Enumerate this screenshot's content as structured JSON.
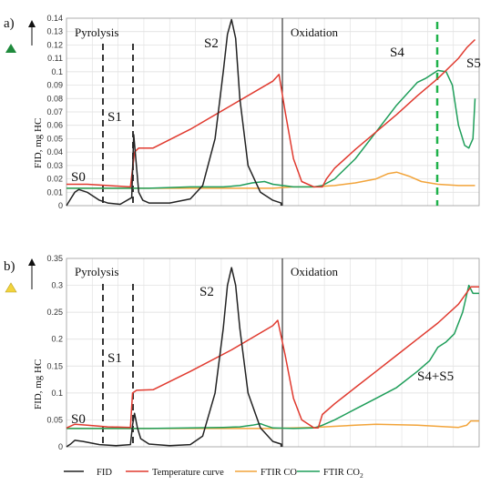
{
  "chart_data": [
    {
      "type": "line",
      "panel_label": "a)",
      "marker_color": "#1f8a3c",
      "ylabel": "FID, mg HC",
      "ylim": [
        0,
        0.14
      ],
      "yticks": [
        "0",
        "0.01",
        "0.02",
        "0.03",
        "0.04",
        "0.05",
        "0.06",
        "0.07",
        "0.08",
        "0.09",
        "0.1",
        "0.11",
        "0.12",
        "0.13",
        "0.14"
      ],
      "grid": true,
      "regions": [
        "Pyrolysis",
        "Oxidation"
      ],
      "annotations": [
        "S0",
        "S1",
        "S2",
        "S4",
        "S5"
      ],
      "series": [
        {
          "name": "FID",
          "color": "#222222",
          "x": [
            0,
            0.01,
            0.02,
            0.03,
            0.05,
            0.08,
            0.1,
            0.13,
            0.158,
            0.163,
            0.168,
            0.175,
            0.185,
            0.2,
            0.25,
            0.3,
            0.33,
            0.36,
            0.38,
            0.39,
            0.4,
            0.41,
            0.42,
            0.44,
            0.47,
            0.5,
            0.52,
            0.52
          ],
          "y": [
            0,
            0.005,
            0.01,
            0.012,
            0.01,
            0.004,
            0.002,
            0.001,
            0.006,
            0.053,
            0.035,
            0.01,
            0.004,
            0.002,
            0.002,
            0.005,
            0.015,
            0.05,
            0.1,
            0.128,
            0.139,
            0.125,
            0.08,
            0.03,
            0.01,
            0.004,
            0.002,
            0
          ]
        },
        {
          "name": "Temperature curve",
          "color": "#e03a2f",
          "x": [
            0,
            0.02,
            0.05,
            0.1,
            0.155,
            0.165,
            0.175,
            0.21,
            0.3,
            0.4,
            0.5,
            0.515,
            0.53,
            0.55,
            0.57,
            0.6,
            0.62,
            0.63,
            0.65,
            0.7,
            0.75,
            0.8,
            0.85,
            0.9,
            0.95,
            0.97,
            0.99
          ],
          "y": [
            0.016,
            0.016,
            0.016,
            0.015,
            0.014,
            0.04,
            0.043,
            0.043,
            0.057,
            0.075,
            0.093,
            0.098,
            0.07,
            0.035,
            0.018,
            0.014,
            0.014,
            0.02,
            0.028,
            0.042,
            0.055,
            0.068,
            0.082,
            0.095,
            0.11,
            0.118,
            0.124
          ]
        },
        {
          "name": "FTIR CO",
          "color": "#f2a43a",
          "x": [
            0,
            0.1,
            0.2,
            0.3,
            0.4,
            0.5,
            0.55,
            0.6,
            0.65,
            0.7,
            0.75,
            0.78,
            0.8,
            0.83,
            0.86,
            0.9,
            0.95,
            0.99
          ],
          "y": [
            0.013,
            0.013,
            0.013,
            0.013,
            0.013,
            0.013,
            0.014,
            0.014,
            0.015,
            0.017,
            0.02,
            0.024,
            0.025,
            0.022,
            0.018,
            0.016,
            0.015,
            0.015
          ]
        },
        {
          "name": "FTIR CO₂",
          "color": "#1f9e5a",
          "x": [
            0,
            0.2,
            0.3,
            0.38,
            0.42,
            0.45,
            0.48,
            0.5,
            0.55,
            0.6,
            0.62,
            0.65,
            0.7,
            0.75,
            0.8,
            0.85,
            0.87,
            0.9,
            0.92,
            0.935,
            0.95,
            0.965,
            0.975,
            0.985,
            0.99
          ],
          "y": [
            0.013,
            0.013,
            0.014,
            0.014,
            0.015,
            0.017,
            0.018,
            0.016,
            0.014,
            0.014,
            0.015,
            0.02,
            0.035,
            0.055,
            0.075,
            0.092,
            0.095,
            0.101,
            0.1,
            0.09,
            0.06,
            0.045,
            0.043,
            0.05,
            0.08
          ]
        }
      ]
    },
    {
      "type": "line",
      "panel_label": "b)",
      "marker_color": "#f2d33c",
      "ylabel": "FID, mg HC",
      "ylim": [
        0,
        0.35
      ],
      "yticks": [
        "0",
        "0.05",
        "0.1",
        "0.15",
        "0.2",
        "0.25",
        "0.3",
        "0.35"
      ],
      "grid": true,
      "regions": [
        "Pyrolysis",
        "Oxidation"
      ],
      "annotations": [
        "S0",
        "S1",
        "S2",
        "S4+S5"
      ],
      "series": [
        {
          "name": "FID",
          "color": "#222222",
          "x": [
            0,
            0.01,
            0.02,
            0.04,
            0.08,
            0.12,
            0.155,
            0.16,
            0.165,
            0.172,
            0.18,
            0.2,
            0.25,
            0.3,
            0.33,
            0.36,
            0.38,
            0.39,
            0.4,
            0.41,
            0.42,
            0.44,
            0.47,
            0.5,
            0.52,
            0.52
          ],
          "y": [
            0,
            0.005,
            0.012,
            0.01,
            0.004,
            0.002,
            0.004,
            0.04,
            0.062,
            0.035,
            0.015,
            0.005,
            0.002,
            0.004,
            0.02,
            0.1,
            0.22,
            0.3,
            0.333,
            0.3,
            0.22,
            0.1,
            0.035,
            0.01,
            0.005,
            0
          ]
        },
        {
          "name": "Temperature curve",
          "color": "#e03a2f",
          "x": [
            0,
            0.02,
            0.05,
            0.1,
            0.155,
            0.16,
            0.17,
            0.21,
            0.3,
            0.4,
            0.5,
            0.512,
            0.53,
            0.55,
            0.57,
            0.6,
            0.61,
            0.62,
            0.65,
            0.7,
            0.75,
            0.8,
            0.85,
            0.9,
            0.95,
            0.98,
            1.0
          ],
          "y": [
            0.035,
            0.042,
            0.04,
            0.037,
            0.036,
            0.1,
            0.105,
            0.106,
            0.14,
            0.18,
            0.225,
            0.235,
            0.17,
            0.09,
            0.05,
            0.035,
            0.035,
            0.06,
            0.08,
            0.11,
            0.14,
            0.17,
            0.2,
            0.23,
            0.265,
            0.297,
            0.297
          ]
        },
        {
          "name": "FTIR CO",
          "color": "#f2a43a",
          "x": [
            0,
            0.1,
            0.2,
            0.3,
            0.4,
            0.5,
            0.55,
            0.6,
            0.65,
            0.7,
            0.75,
            0.8,
            0.85,
            0.9,
            0.95,
            0.97,
            0.98,
            1.0
          ],
          "y": [
            0.034,
            0.034,
            0.034,
            0.034,
            0.034,
            0.034,
            0.035,
            0.036,
            0.038,
            0.04,
            0.042,
            0.041,
            0.04,
            0.038,
            0.036,
            0.04,
            0.048,
            0.048
          ]
        },
        {
          "name": "FTIR CO₂",
          "color": "#1f9e5a",
          "x": [
            0,
            0.2,
            0.3,
            0.38,
            0.42,
            0.45,
            0.47,
            0.48,
            0.5,
            0.55,
            0.6,
            0.62,
            0.65,
            0.7,
            0.75,
            0.8,
            0.85,
            0.88,
            0.9,
            0.92,
            0.94,
            0.96,
            0.975,
            0.985,
            1.0
          ],
          "y": [
            0.034,
            0.034,
            0.035,
            0.036,
            0.037,
            0.04,
            0.043,
            0.04,
            0.035,
            0.034,
            0.035,
            0.04,
            0.05,
            0.07,
            0.09,
            0.11,
            0.14,
            0.16,
            0.185,
            0.195,
            0.21,
            0.25,
            0.3,
            0.285,
            0.285
          ]
        }
      ]
    }
  ],
  "legend": [
    {
      "label": "FID",
      "color": "#222222"
    },
    {
      "label": "Temperature curve",
      "color": "#e03a2f"
    },
    {
      "label": "FTIR CO",
      "color": "#f2a43a"
    },
    {
      "label": "FTIR CO",
      "sub": "2",
      "color": "#1f9e5a"
    }
  ]
}
